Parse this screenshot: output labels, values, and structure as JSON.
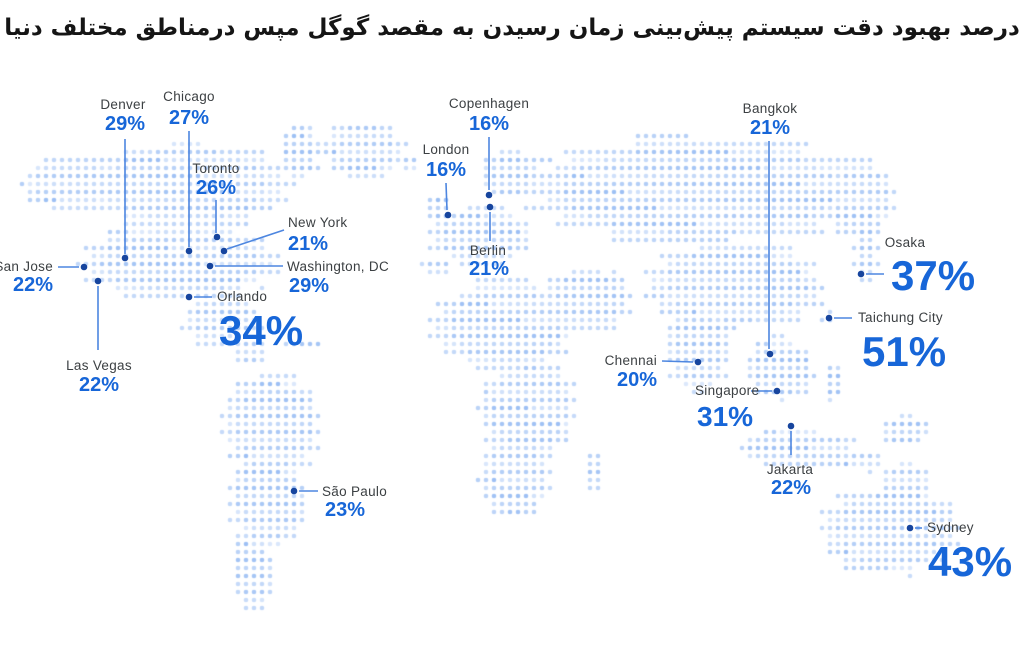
{
  "title": "درصد بهبود دقت سیستم پیش‌بینی زمان رسیدن به مقصد گوگل مپس درمناطق مختلف دنیا",
  "colors": {
    "value_blue": "#1766d8",
    "label_gray": "#3c4043",
    "connector_line": "#4d86e0",
    "marker_navy": "#17459e",
    "map_dot": "#cfdff8"
  },
  "cities": [
    {
      "id": "denver",
      "name": "Denver",
      "value": "29%"
    },
    {
      "id": "chicago",
      "name": "Chicago",
      "value": "27%"
    },
    {
      "id": "toronto",
      "name": "Toronto",
      "value": "26%"
    },
    {
      "id": "new-york",
      "name": "New York",
      "value": "21%"
    },
    {
      "id": "washington-dc",
      "name": "Washington, DC",
      "value": "29%"
    },
    {
      "id": "san-jose",
      "name": "San Jose",
      "value": "22%"
    },
    {
      "id": "las-vegas",
      "name": "Las Vegas",
      "value": "22%"
    },
    {
      "id": "orlando",
      "name": "Orlando",
      "value": "34%"
    },
    {
      "id": "sao-paulo",
      "name": "São Paulo",
      "value": "23%"
    },
    {
      "id": "london",
      "name": "London",
      "value": "16%"
    },
    {
      "id": "copenhagen",
      "name": "Copenhagen",
      "value": "16%"
    },
    {
      "id": "berlin",
      "name": "Berlin",
      "value": "21%"
    },
    {
      "id": "bangkok",
      "name": "Bangkok",
      "value": "21%"
    },
    {
      "id": "chennai",
      "name": "Chennai",
      "value": "20%"
    },
    {
      "id": "singapore",
      "name": "Singapore",
      "value": "31%"
    },
    {
      "id": "jakarta",
      "name": "Jakarta",
      "value": "22%"
    },
    {
      "id": "osaka",
      "name": "Osaka",
      "value": "37%"
    },
    {
      "id": "taichung-city",
      "name": "Taichung City",
      "value": "51%"
    },
    {
      "id": "sydney",
      "name": "Sydney",
      "value": "43%"
    }
  ]
}
